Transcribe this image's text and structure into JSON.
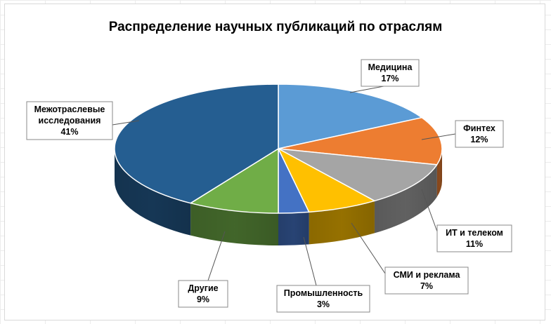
{
  "chart_data": {
    "type": "pie",
    "title": "Распределение научных публикаций по отраслям",
    "three_d": true,
    "slices": [
      {
        "label_lines": [
          "Медицина"
        ],
        "percent_label": "17%",
        "value": 17,
        "color": "#5b9bd5"
      },
      {
        "label_lines": [
          "Финтех"
        ],
        "percent_label": "12%",
        "value": 12,
        "color": "#ed7d31"
      },
      {
        "label_lines": [
          "ИТ и телеком"
        ],
        "percent_label": "11%",
        "value": 11,
        "color": "#a5a5a5"
      },
      {
        "label_lines": [
          "СМИ и реклама"
        ],
        "percent_label": "7%",
        "value": 7,
        "color": "#ffc000"
      },
      {
        "label_lines": [
          "Промышленность"
        ],
        "percent_label": "3%",
        "value": 3,
        "color": "#4472c4"
      },
      {
        "label_lines": [
          "Другие"
        ],
        "percent_label": "9%",
        "value": 9,
        "color": "#70ad47"
      },
      {
        "label_lines": [
          "Межотраслевые",
          "исследования"
        ],
        "percent_label": "41%",
        "value": 41,
        "color": "#255e91"
      }
    ],
    "legend": "none",
    "data_labels": "callouts"
  }
}
